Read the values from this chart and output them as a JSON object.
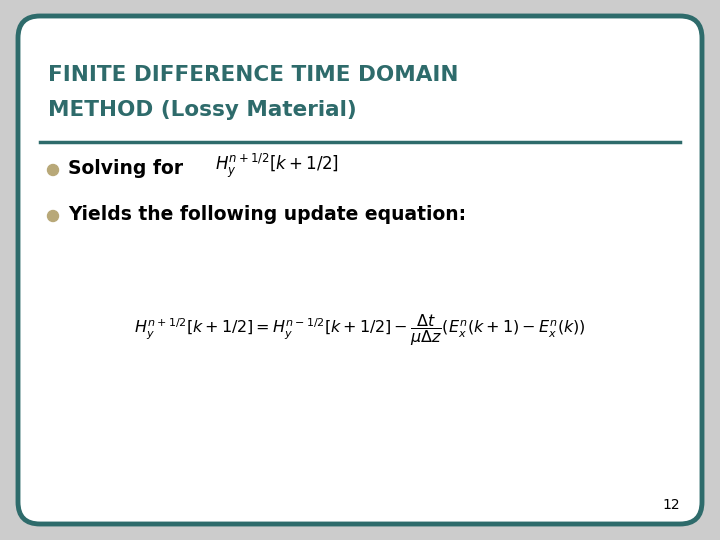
{
  "title_line1": "FINITE DIFFERENCE TIME DOMAIN",
  "title_line2": "METHOD (Lossy Material)",
  "title_color": "#2E6B6B",
  "background_color": "#FFFFFF",
  "border_color": "#2E6B6B",
  "bullet_color": "#B8A878",
  "bullet1_text": "Solving for",
  "bullet1_math": "$H_y^{n+1/2}[k+1/2]$",
  "bullet2_text": "Yields the following update equation:",
  "equation": "$H_y^{n+1/2}[k+1/2] = H_y^{n-1/2}[k+1/2] - \\dfrac{\\Delta t}{\\mu \\Delta z}(E_x^n(k+1) - E_x^n(k))$",
  "page_number": "12",
  "slide_bg": "#CCCCCC",
  "border_linewidth": 3.5,
  "title_fontsize": 15.5,
  "bullet_fontsize": 13.5,
  "eq_fontsize": 11.5,
  "page_fontsize": 10
}
